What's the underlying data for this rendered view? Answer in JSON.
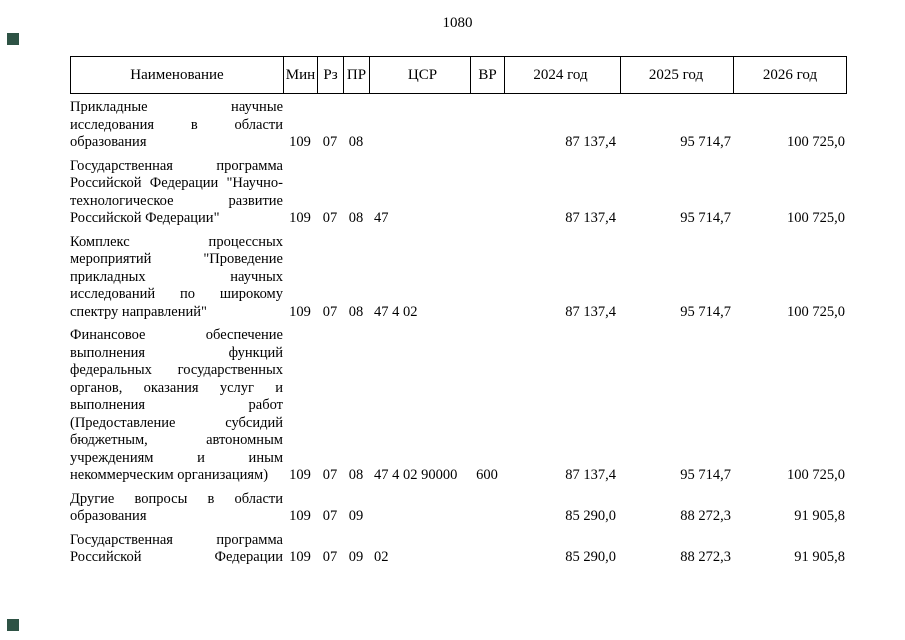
{
  "page": {
    "number": "1080",
    "scan_mark_color": "#2e5345"
  },
  "table": {
    "columns": [
      {
        "key": "name",
        "label": "Наименование"
      },
      {
        "key": "min",
        "label": "Мин"
      },
      {
        "key": "rz",
        "label": "Рз"
      },
      {
        "key": "pr",
        "label": "ПР"
      },
      {
        "key": "csr",
        "label": "ЦСР"
      },
      {
        "key": "vr",
        "label": "ВР"
      },
      {
        "key": "y24",
        "label": "2024 год"
      },
      {
        "key": "y25",
        "label": "2025 год"
      },
      {
        "key": "y26",
        "label": "2026 год"
      }
    ],
    "rows": [
      {
        "name": "Прикладные научные исследования в области образования",
        "min": "109",
        "rz": "07",
        "pr": "08",
        "csr": "",
        "vr": "",
        "y24": "87 137,4",
        "y25": "95 714,7",
        "y26": "100 725,0",
        "continues": false
      },
      {
        "name": "Государственная программа Российской Федерации \"Научно-технологическое развитие Российской Федерации\"",
        "min": "109",
        "rz": "07",
        "pr": "08",
        "csr": "47",
        "vr": "",
        "y24": "87 137,4",
        "y25": "95 714,7",
        "y26": "100 725,0",
        "continues": false
      },
      {
        "name": "Комплекс процессных мероприятий \"Проведение прикладных научных исследований по широкому спектру направлений\"",
        "min": "109",
        "rz": "07",
        "pr": "08",
        "csr": "47 4 02",
        "vr": "",
        "y24": "87 137,4",
        "y25": "95 714,7",
        "y26": "100 725,0",
        "continues": false
      },
      {
        "name": "Финансовое обеспечение выполнения функций федеральных государственных органов, оказания услуг и выполнения работ (Предоставление субсидий бюджетным, автономным учреждениям и иным некоммерческим организациям)",
        "min": "109",
        "rz": "07",
        "pr": "08",
        "csr": "47 4 02 90000",
        "vr": "600",
        "y24": "87 137,4",
        "y25": "95 714,7",
        "y26": "100 725,0",
        "continues": false
      },
      {
        "name": "Другие вопросы в области образования",
        "min": "109",
        "rz": "07",
        "pr": "09",
        "csr": "",
        "vr": "",
        "y24": "85 290,0",
        "y25": "88 272,3",
        "y26": "91 905,8",
        "continues": false
      },
      {
        "name": "Государственная программа Российской Федерации",
        "min": "109",
        "rz": "07",
        "pr": "09",
        "csr": "02",
        "vr": "",
        "y24": "85 290,0",
        "y25": "88 272,3",
        "y26": "91 905,8",
        "continues": true
      }
    ]
  }
}
